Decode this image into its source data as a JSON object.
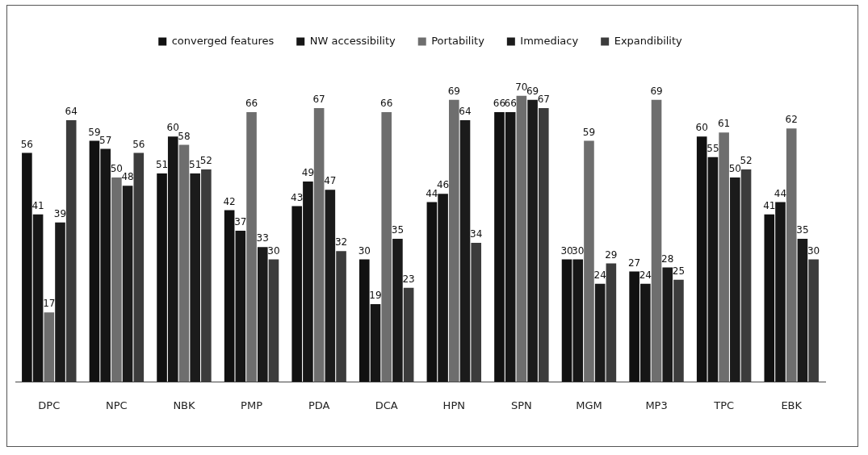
{
  "chart_data": {
    "type": "bar",
    "categories": [
      "DPC",
      "NPC",
      "NBK",
      "PMP",
      "PDA",
      "DCA",
      "HPN",
      "SPN",
      "MGM",
      "MP3",
      "TPC",
      "EBK"
    ],
    "series": [
      {
        "name": "converged features",
        "color": "#111111",
        "values": [
          56,
          59,
          51,
          42,
          43,
          30,
          44,
          66,
          30,
          27,
          60,
          41
        ]
      },
      {
        "name": "NW accessibility",
        "color": "#161616",
        "values": [
          41,
          57,
          60,
          37,
          49,
          19,
          46,
          66,
          30,
          24,
          55,
          44
        ]
      },
      {
        "name": "Portability",
        "color": "#6e6e6e",
        "values": [
          17,
          50,
          58,
          66,
          67,
          66,
          69,
          70,
          59,
          69,
          61,
          62
        ]
      },
      {
        "name": "Immediacy",
        "color": "#1b1b1b",
        "values": [
          39,
          48,
          51,
          33,
          47,
          35,
          64,
          69,
          24,
          28,
          50,
          35
        ]
      },
      {
        "name": "Expandibility",
        "color": "#3c3c3c",
        "values": [
          64,
          56,
          52,
          30,
          32,
          23,
          34,
          67,
          29,
          25,
          52,
          30
        ]
      }
    ],
    "tick_labels": "x",
    "grid": false,
    "legend": "top",
    "data_labels": true
  }
}
